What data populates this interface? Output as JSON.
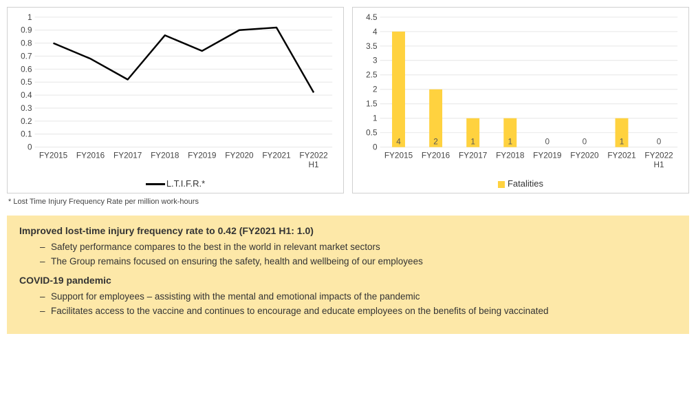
{
  "line_chart": {
    "type": "line",
    "series_label": "L.T.I.F.R.*",
    "categories": [
      "FY2015",
      "FY2016",
      "FY2017",
      "FY2018",
      "FY2019",
      "FY2020",
      "FY2021",
      "FY2022\nH1"
    ],
    "values": [
      0.8,
      0.68,
      0.52,
      0.86,
      0.74,
      0.9,
      0.92,
      0.42
    ],
    "ymin": 0,
    "ymax": 1,
    "ystep": 0.1,
    "line_color": "#000000",
    "line_width": 2.5,
    "grid_color": "#e6e6e6",
    "axis_color": "#d0d0d0",
    "tick_font_size": 12,
    "legend_font_size": 13
  },
  "bar_chart": {
    "type": "bar",
    "series_label": "Fatalities",
    "categories": [
      "FY2015",
      "FY2016",
      "FY2017",
      "FY2018",
      "FY2019",
      "FY2020",
      "FY2021",
      "FY2022\nH1"
    ],
    "values": [
      4,
      2,
      1,
      1,
      0,
      0,
      1,
      0
    ],
    "ymin": 0,
    "ymax": 4.5,
    "ystep": 0.5,
    "bar_color": "#ffd23f",
    "value_label_color": "#555555",
    "grid_color": "#e6e6e6",
    "axis_color": "#d0d0d0",
    "tick_font_size": 12,
    "bar_width_ratio": 0.35
  },
  "footnote": "* Lost Time Injury Frequency Rate per million work-hours",
  "highlights": {
    "heading1": "Improved lost-time injury frequency rate to 0.42 (FY2021 H1: 1.0)",
    "bullets1": [
      "Safety performance compares to the best in the world in relevant market sectors",
      "The Group remains focused on ensuring the safety, health and wellbeing of our employees"
    ],
    "heading2": "COVID-19 pandemic",
    "bullets2": [
      "Support for employees – assisting with the mental and emotional impacts of the pandemic",
      "Facilitates access to the vaccine and continues to encourage and educate employees on the benefits of being vaccinated"
    ]
  },
  "colors": {
    "highlight_bg": "#fde8a8"
  }
}
